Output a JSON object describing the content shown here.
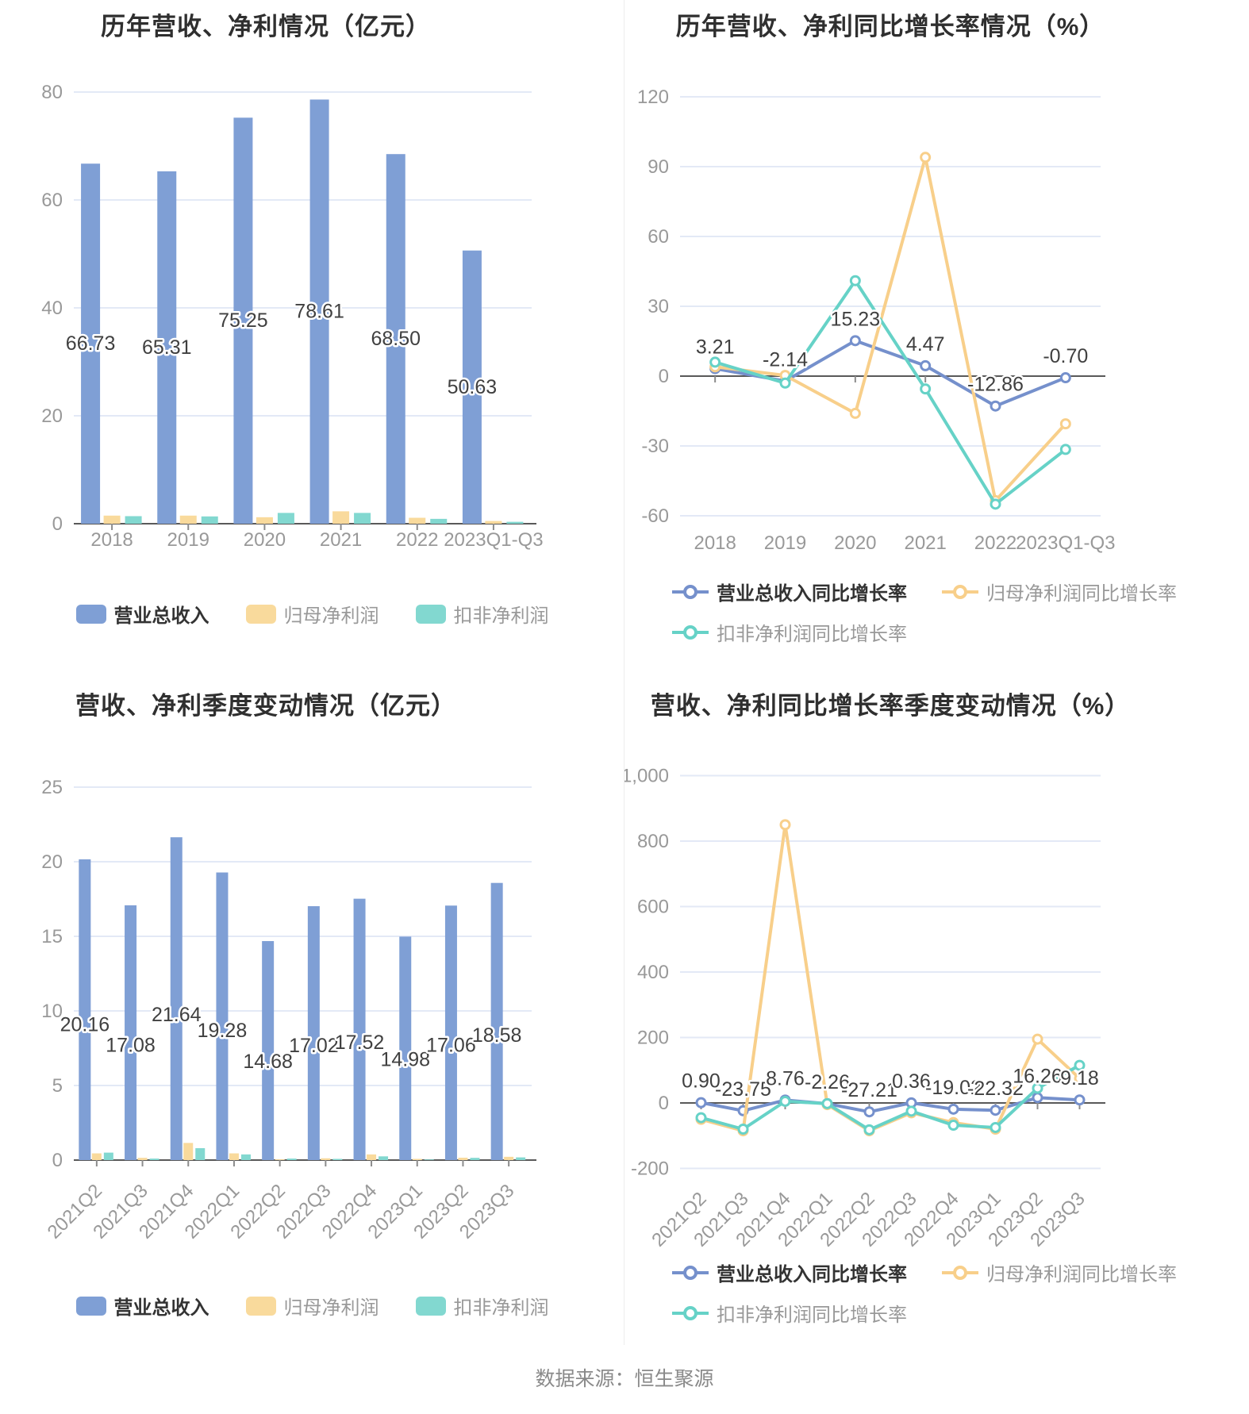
{
  "page": {
    "background": "#ffffff",
    "divider_color": "#ececec"
  },
  "palette": {
    "bar_blue": "#7F9FD5",
    "bar_orange": "#F9DA9C",
    "bar_teal": "#82D8D0",
    "line_blue": "#7590CC",
    "line_orange": "#F8CF8A",
    "line_teal": "#66D2C7",
    "grid_line": "#E3E9F6",
    "axis_line": "#595959",
    "tick_label": "#999999",
    "data_label": "#404040",
    "title_color": "#2f2f2f"
  },
  "footer": {
    "source": "数据来源：恒生聚源"
  },
  "chart_data": [
    {
      "id": "annual_values",
      "type": "bar",
      "title": "历年营收、净利情况（亿元）",
      "categories": [
        "2018",
        "2019",
        "2020",
        "2021",
        "2022",
        "2023Q1-Q3"
      ],
      "ylim": [
        0,
        80
      ],
      "grid": true,
      "y_ticks": [
        [
          0,
          "0"
        ],
        [
          20,
          "20"
        ],
        [
          40,
          "40"
        ],
        [
          60,
          "60"
        ],
        [
          80,
          "80"
        ]
      ],
      "series": [
        {
          "key": "total-revenue",
          "name": "营业总收入",
          "color": "bar_blue",
          "values": [
            66.73,
            65.31,
            75.25,
            78.61,
            68.5,
            50.63
          ],
          "labels": [
            "66.73",
            "65.31",
            "75.25",
            "78.61",
            "68.50",
            "50.63"
          ]
        },
        {
          "key": "net-profit",
          "name": "归母净利润",
          "color": "bar_orange",
          "values": [
            1.5,
            1.5,
            1.2,
            2.3,
            1.1,
            0.5
          ]
        },
        {
          "key": "deducted-profit",
          "name": "扣非净利润",
          "color": "bar_teal",
          "values": [
            1.4,
            1.35,
            2.0,
            2.0,
            0.9,
            0.35
          ]
        }
      ],
      "legend_rows": [
        [
          0,
          1,
          2
        ]
      ],
      "legend_position": "bottom-center"
    },
    {
      "id": "annual_growth",
      "type": "line",
      "title": "历年营收、净利同比增长率情况（%）",
      "categories": [
        "2018",
        "2019",
        "2020",
        "2021",
        "2022",
        "2023Q1-Q3"
      ],
      "ylim": [
        -60,
        120
      ],
      "grid": true,
      "y_ticks": [
        [
          -60,
          "-60"
        ],
        [
          -30,
          "-30"
        ],
        [
          0,
          "0"
        ],
        [
          30,
          "30"
        ],
        [
          60,
          "60"
        ],
        [
          90,
          "90"
        ],
        [
          120,
          "120"
        ]
      ],
      "series": [
        {
          "key": "total-revenue-growth",
          "name": "营业总收入同比增长率",
          "color": "line_blue",
          "values": [
            3.21,
            -2.14,
            15.23,
            4.47,
            -12.86,
            -0.7
          ],
          "labels": [
            "3.21",
            "-2.14",
            "15.23",
            "4.47",
            "-12.86",
            "-0.70"
          ]
        },
        {
          "key": "net-profit-growth",
          "name": "归母净利润同比增长率",
          "color": "line_orange",
          "values": [
            4.0,
            0.3,
            -16.0,
            94.0,
            -53.5,
            -20.5
          ]
        },
        {
          "key": "deducted-profit-growth",
          "name": "扣非净利润同比增长率",
          "color": "line_teal",
          "values": [
            6.0,
            -3.0,
            41.0,
            -5.5,
            -55.0,
            -31.5
          ]
        }
      ],
      "legend_rows": [
        [
          0,
          1
        ],
        [
          2
        ]
      ],
      "legend_position": "bottom-left"
    },
    {
      "id": "quarterly_values",
      "type": "bar",
      "title": "营收、净利季度变动情况（亿元）",
      "categories": [
        "2021Q2",
        "2021Q3",
        "2021Q4",
        "2022Q1",
        "2022Q2",
        "2022Q3",
        "2022Q4",
        "2023Q1",
        "2023Q2",
        "2023Q3"
      ],
      "ylim": [
        0,
        25
      ],
      "grid": true,
      "y_ticks": [
        [
          0,
          "0"
        ],
        [
          5,
          "5"
        ],
        [
          10,
          "10"
        ],
        [
          15,
          "15"
        ],
        [
          20,
          "20"
        ],
        [
          25,
          "25"
        ]
      ],
      "series": [
        {
          "key": "total-revenue",
          "name": "营业总收入",
          "color": "bar_blue",
          "values": [
            20.16,
            17.08,
            21.64,
            19.28,
            14.68,
            17.02,
            17.52,
            14.98,
            17.06,
            18.58
          ],
          "labels": [
            "20.16",
            "17.08",
            "21.64",
            "19.28",
            "14.68",
            "17.02",
            "17.52",
            "14.98",
            "17.06",
            "18.58"
          ]
        },
        {
          "key": "net-profit",
          "name": "归母净利润",
          "color": "bar_orange",
          "values": [
            0.45,
            0.15,
            1.15,
            0.45,
            0.05,
            0.12,
            0.38,
            0.08,
            0.16,
            0.22
          ]
        },
        {
          "key": "deducted-profit",
          "name": "扣非净利润",
          "color": "bar_teal",
          "values": [
            0.5,
            0.1,
            0.8,
            0.38,
            0.1,
            0.08,
            0.25,
            0.04,
            0.15,
            0.18
          ]
        }
      ],
      "legend_rows": [
        [
          0,
          1,
          2
        ]
      ],
      "legend_position": "bottom-center"
    },
    {
      "id": "quarterly_growth",
      "type": "line",
      "title": "营收、净利同比增长率季度变动情况（%）",
      "categories": [
        "2021Q2",
        "2021Q3",
        "2021Q4",
        "2022Q1",
        "2022Q2",
        "2022Q3",
        "2022Q4",
        "2023Q1",
        "2023Q2",
        "2023Q3"
      ],
      "ylim": [
        -200,
        1000
      ],
      "grid": true,
      "y_ticks": [
        [
          -200,
          "-200"
        ],
        [
          0,
          "0"
        ],
        [
          200,
          "200"
        ],
        [
          400,
          "400"
        ],
        [
          600,
          "600"
        ],
        [
          800,
          "800"
        ],
        [
          1000,
          "1,000"
        ]
      ],
      "series": [
        {
          "key": "total-revenue-growth",
          "name": "营业总收入同比增长率",
          "color": "line_blue",
          "values": [
            0.9,
            -23.75,
            8.76,
            -2.26,
            -27.21,
            0.36,
            -19.02,
            -22.32,
            16.26,
            9.18
          ],
          "labels": [
            "0.90",
            "-23.75",
            "8.76",
            "-2.26",
            "-27.21",
            "0.36",
            "-19.02",
            "-22.32",
            "16.26",
            "9.18"
          ]
        },
        {
          "key": "net-profit-growth",
          "name": "归母净利润同比增长率",
          "color": "line_orange",
          "values": [
            -50,
            -85,
            850,
            -5,
            -85,
            -30,
            -60,
            -80,
            195,
            75
          ]
        },
        {
          "key": "deducted-profit-growth",
          "name": "扣非净利润同比增长率",
          "color": "line_teal",
          "values": [
            -45,
            -80,
            5,
            -2,
            -82,
            -25,
            -68,
            -75,
            45,
            115
          ]
        }
      ],
      "legend_rows": [
        [
          0,
          1
        ],
        [
          2
        ]
      ],
      "legend_position": "bottom-left"
    }
  ]
}
